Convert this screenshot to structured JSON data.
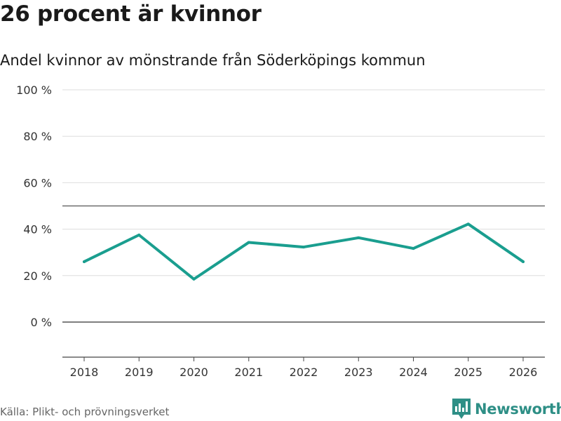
{
  "header": {
    "title": "26 procent är kvinnor",
    "subtitle": "Andel kvinnor av mönstrande från Söderköpings kommun"
  },
  "footer": {
    "source": "Källa: Plikt- och prövningsverket",
    "brand": "Newsworthy",
    "brand_icon": "bar-chart-logo-icon"
  },
  "colors": {
    "line": "#1a9e8f",
    "grid": "#dddddd",
    "reference": "#555555",
    "brand": "#2e8f86"
  },
  "chart_data": {
    "type": "line",
    "title": "26 procent är kvinnor",
    "subtitle": "Andel kvinnor av mönstrande från Söderköpings kommun",
    "xlabel": "",
    "ylabel": "",
    "categories": [
      "2018",
      "2019",
      "2020",
      "2021",
      "2022",
      "2023",
      "2024",
      "2025",
      "2026"
    ],
    "series": [
      {
        "name": "Andel kvinnor",
        "values": [
          26,
          37.5,
          18.5,
          34.3,
          32.3,
          36.3,
          31.7,
          42.2,
          26
        ]
      }
    ],
    "ylim": [
      -15,
      100
    ],
    "yticks": [
      0,
      20,
      40,
      60,
      80,
      100
    ],
    "ytick_labels": [
      "0 %",
      "20 %",
      "40 %",
      "60 %",
      "80 %",
      "100 %"
    ],
    "reference_lines": [
      0,
      50
    ],
    "grid": true
  }
}
